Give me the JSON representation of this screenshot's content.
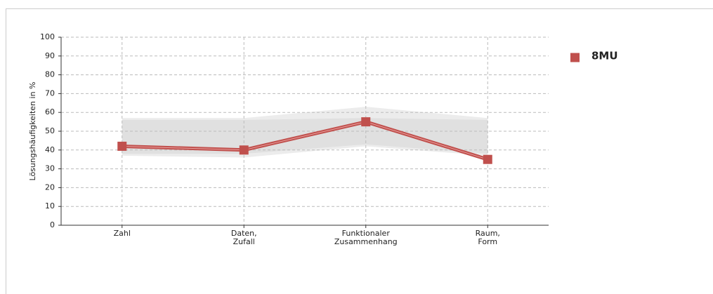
{
  "chart_data": {
    "type": "line",
    "y_label": "Lösungshäufigkeiten in %",
    "categories": [
      "Zahl",
      "Daten, Zufall",
      "Funktionaler Zusammenhang",
      "Raum, Form"
    ],
    "series": [
      {
        "name": "8MU",
        "color": "#c0504d",
        "values": [
          42,
          40,
          55,
          35
        ]
      }
    ],
    "band_outer": {
      "upper": [
        57,
        57,
        63,
        57
      ],
      "lower": [
        37,
        36,
        42,
        37
      ]
    },
    "band_inner": {
      "upper": [
        56,
        56,
        57,
        56
      ],
      "lower": [
        38,
        38,
        43,
        38
      ]
    },
    "ylim": [
      0,
      100
    ],
    "yticks": [
      0,
      10,
      20,
      30,
      40,
      50,
      60,
      70,
      80,
      90,
      100
    ],
    "grid": true
  }
}
